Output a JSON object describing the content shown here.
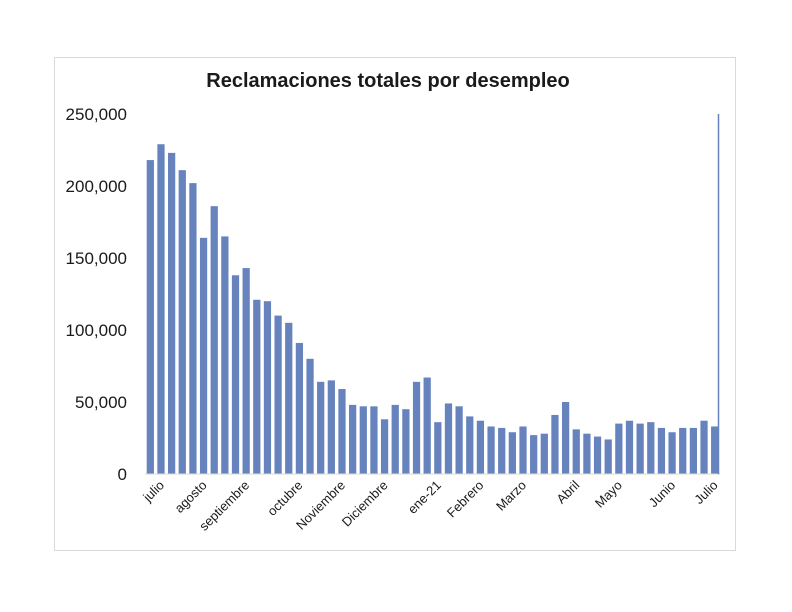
{
  "chart_data": {
    "type": "bar",
    "title": "Reclamaciones totales por desempleo",
    "xlabel": "",
    "ylabel": "",
    "ylim": [
      0,
      250000
    ],
    "yticks": [
      0,
      50000,
      100000,
      150000,
      200000,
      250000
    ],
    "ytick_labels": [
      "0",
      "50,000",
      "100,000",
      "150,000",
      "200,000",
      "250,000"
    ],
    "grid": false,
    "legend": "none",
    "bar_color": "#6683bd",
    "x_labels": [
      {
        "index": 1,
        "label": "julio"
      },
      {
        "index": 5,
        "label": "agosto"
      },
      {
        "index": 9,
        "label": "septiembre"
      },
      {
        "index": 14,
        "label": "octubre"
      },
      {
        "index": 18,
        "label": "Noviembre"
      },
      {
        "index": 22,
        "label": "Diciembre"
      },
      {
        "index": 27,
        "label": "ene-21"
      },
      {
        "index": 31,
        "label": "Febrero"
      },
      {
        "index": 35,
        "label": "Marzo"
      },
      {
        "index": 40,
        "label": "Abril"
      },
      {
        "index": 44,
        "label": "Mayo"
      },
      {
        "index": 49,
        "label": "Junio"
      },
      {
        "index": 53,
        "label": "Julio"
      }
    ],
    "values": [
      218000,
      229000,
      223000,
      211000,
      202000,
      164000,
      186000,
      165000,
      138000,
      143000,
      121000,
      120000,
      110000,
      105000,
      91000,
      80000,
      64000,
      65000,
      59000,
      48000,
      47000,
      47000,
      38000,
      48000,
      45000,
      64000,
      67000,
      36000,
      49000,
      47000,
      40000,
      37000,
      33000,
      32000,
      29000,
      33000,
      27000,
      28000,
      41000,
      50000,
      31000,
      28000,
      26000,
      24000,
      35000,
      37000,
      35000,
      36000,
      32000,
      29000,
      32000,
      32000,
      37000,
      33000
    ],
    "annotations": [
      {
        "type": "vertical-line",
        "index": 54,
        "y_top": 250000,
        "color": "#6683bd"
      }
    ]
  }
}
